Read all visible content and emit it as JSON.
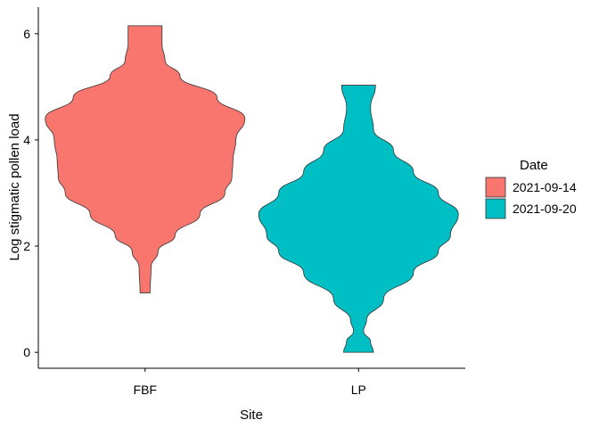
{
  "chart_data": {
    "type": "violin",
    "xlabel": "Site",
    "ylabel": "Log stigmatic pollen load",
    "categories": [
      "FBF",
      "LP"
    ],
    "ylim": [
      -0.3,
      6.5
    ],
    "yticks": [
      0,
      2,
      4,
      6
    ],
    "grid": false,
    "legend": {
      "title": "Date",
      "placement": "right",
      "entries": [
        {
          "label": "2021-09-14",
          "color": "#F8766D"
        },
        {
          "label": "2021-09-20",
          "color": "#00BFC4"
        }
      ]
    },
    "series": [
      {
        "category": "FBF",
        "date": "2021-09-14",
        "color": "#F8766D",
        "range": [
          1.12,
          6.15
        ],
        "density": [
          {
            "y": 1.12,
            "d": 0.05
          },
          {
            "y": 1.6,
            "d": 0.06
          },
          {
            "y": 1.9,
            "d": 0.13
          },
          {
            "y": 2.2,
            "d": 0.3
          },
          {
            "y": 2.6,
            "d": 0.55
          },
          {
            "y": 3.0,
            "d": 0.8
          },
          {
            "y": 3.3,
            "d": 0.87
          },
          {
            "y": 3.6,
            "d": 0.88
          },
          {
            "y": 4.0,
            "d": 0.91
          },
          {
            "y": 4.4,
            "d": 1.0
          },
          {
            "y": 4.8,
            "d": 0.72
          },
          {
            "y": 5.2,
            "d": 0.35
          },
          {
            "y": 5.5,
            "d": 0.2
          },
          {
            "y": 5.8,
            "d": 0.17
          },
          {
            "y": 6.15,
            "d": 0.17
          }
        ]
      },
      {
        "category": "LP",
        "date": "2021-09-20",
        "color": "#00BFC4",
        "range": [
          0.0,
          5.03
        ],
        "density": [
          {
            "y": 0.0,
            "d": 0.15
          },
          {
            "y": 0.2,
            "d": 0.12
          },
          {
            "y": 0.4,
            "d": 0.05
          },
          {
            "y": 0.6,
            "d": 0.08
          },
          {
            "y": 1.0,
            "d": 0.25
          },
          {
            "y": 1.5,
            "d": 0.55
          },
          {
            "y": 1.9,
            "d": 0.8
          },
          {
            "y": 2.2,
            "d": 0.92
          },
          {
            "y": 2.6,
            "d": 1.0
          },
          {
            "y": 3.0,
            "d": 0.8
          },
          {
            "y": 3.4,
            "d": 0.55
          },
          {
            "y": 3.8,
            "d": 0.35
          },
          {
            "y": 4.2,
            "d": 0.15
          },
          {
            "y": 4.6,
            "d": 0.12
          },
          {
            "y": 5.03,
            "d": 0.17
          }
        ]
      }
    ]
  }
}
